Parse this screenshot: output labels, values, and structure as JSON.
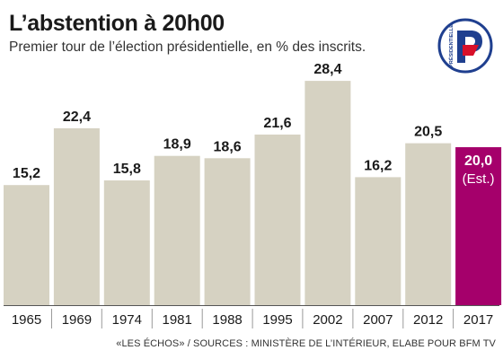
{
  "header": {
    "title": "L’abstention à 20h00",
    "subtitle": "Premier tour de l’élection présidentielle, en % des inscrits."
  },
  "logo": {
    "text": "PRÉSIDENTIELLE",
    "letter": "P"
  },
  "footer": {
    "source": "«LES ÉCHOS» / SOURCES : MINISTÈRE DE L’INTÉRIEUR, ELABE POUR BFM TV"
  },
  "colors": {
    "bar": "#d6d2c2",
    "highlight": "#a5006b",
    "axis": "#555555"
  },
  "chart_data": {
    "type": "bar",
    "title": "L’abstention à 20h00",
    "subtitle": "Premier tour de l’élection présidentielle, en % des inscrits.",
    "categories": [
      "1965",
      "1969",
      "1974",
      "1981",
      "1988",
      "1995",
      "2002",
      "2007",
      "2012",
      "2017"
    ],
    "values": [
      15.2,
      22.4,
      15.8,
      18.9,
      18.6,
      21.6,
      28.4,
      16.2,
      20.5,
      20.0
    ],
    "value_labels": [
      "15,2",
      "22,4",
      "15,8",
      "18,9",
      "18,6",
      "21,6",
      "28,4",
      "16,2",
      "20,5",
      "20,0"
    ],
    "highlight_index": 9,
    "highlight_note": "(Est.)",
    "ylim": [
      0,
      30
    ],
    "grid": false,
    "xlabel": "",
    "ylabel": ""
  }
}
